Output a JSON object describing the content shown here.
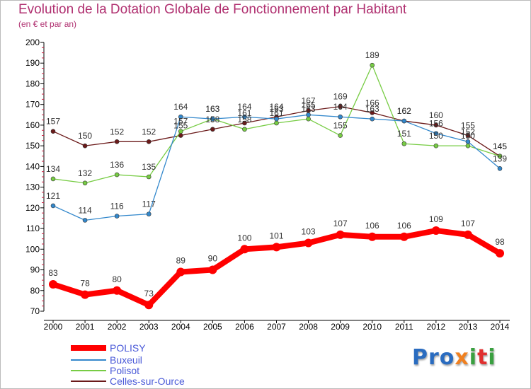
{
  "header": {
    "title": "Evolution de la Dotation Globale de Fonctionnement par Habitant",
    "subtitle": "(en € et par an)"
  },
  "logo": {
    "text": "Proxiti"
  },
  "chart_data": {
    "type": "line",
    "title": "Evolution de la Dotation Globale de Fonctionnement par Habitant",
    "subtitle": "(en € et par an)",
    "xlabel": "",
    "ylabel": "",
    "x": [
      "2000",
      "2001",
      "2002",
      "2003",
      "2004",
      "2005",
      "2006",
      "2007",
      "2008",
      "2009",
      "2010",
      "2011",
      "2012",
      "2013",
      "2014"
    ],
    "ylim": [
      70,
      200
    ],
    "yticks": [
      70,
      80,
      90,
      100,
      110,
      120,
      130,
      140,
      150,
      160,
      170,
      180,
      190,
      200
    ],
    "grid": false,
    "legend_position": "bottom-left",
    "series": [
      {
        "name": "POLISY",
        "color": "#ff0000",
        "values": [
          83,
          78,
          80,
          73,
          89,
          90,
          100,
          101,
          103,
          107,
          106,
          106,
          109,
          107,
          98
        ],
        "labels": [
          "83",
          "78",
          "80",
          "73",
          "89",
          "90",
          "100",
          "101",
          "103",
          "107",
          "106",
          "106",
          "109",
          "107",
          "98"
        ]
      },
      {
        "name": "Buxeuil",
        "color": "#3388cc",
        "values": [
          121,
          114,
          116,
          117,
          164,
          163,
          164,
          163,
          165,
          164,
          163,
          162,
          156,
          152,
          139
        ],
        "labels": [
          "121",
          "114",
          "116",
          "117",
          "164",
          "163",
          "164",
          "163",
          "165",
          "164",
          "163",
          "162",
          "156",
          "152",
          "139"
        ]
      },
      {
        "name": "Polisot",
        "color": "#77cc44",
        "values": [
          134,
          132,
          136,
          135,
          157,
          163,
          158,
          161,
          163,
          155,
          189,
          151,
          150,
          150,
          145
        ],
        "labels": [
          "134",
          "132",
          "136",
          "135",
          "157",
          "163",
          "158",
          "161",
          "163",
          "155",
          "189",
          "151",
          "150",
          "150",
          "145"
        ]
      },
      {
        "name": "Celles-sur-Ource",
        "color": "#6b1a1a",
        "values": [
          157,
          150,
          152,
          152,
          155,
          158,
          161,
          164,
          167,
          169,
          166,
          162,
          160,
          155,
          145
        ],
        "labels": [
          "157",
          "150",
          "152",
          "152",
          "155",
          "158",
          "161",
          "164",
          "167",
          "169",
          "166",
          "162",
          "160",
          "155",
          "145"
        ]
      }
    ]
  }
}
